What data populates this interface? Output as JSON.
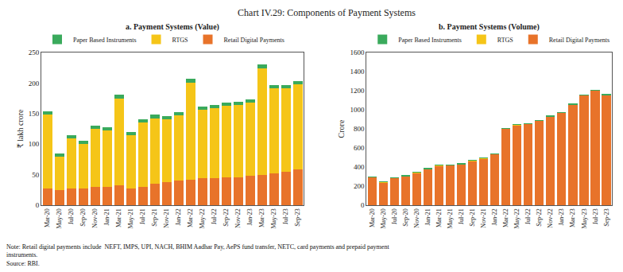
{
  "title": "Chart IV.29: Components of Payment Systems",
  "annotations": [
    "Note: Retail digital payments include  NEFT, IMPS, UPI, NACH, BHIM Aadhar Pay, AePS fund transfer, NETC, card payments and prepaid payment",
    "instruments.",
    "Source: RBI."
  ],
  "chart_data": [
    {
      "type": "bar",
      "title": "a. Payment Systems (Value)",
      "ylabel": "₹ lakh crore",
      "categories": [
        "Mar-20",
        "May-20",
        "Jul-20",
        "Sep-20",
        "Nov-20",
        "Jan-21",
        "Mar-21",
        "May-21",
        "Jul-21",
        "Sep-21",
        "Nov-21",
        "Jan-22",
        "Mar-22",
        "May-22",
        "Jul-22",
        "Sep-22",
        "Nov-22",
        "Jan-23",
        "Mar-23",
        "May-23",
        "Jul-23",
        "Sep-23"
      ],
      "series": [
        {
          "name": "Retail Digital Payments",
          "color": "#E8732A",
          "values": [
            27,
            25,
            27,
            28,
            30,
            30,
            32,
            28,
            30,
            35,
            38,
            40,
            42,
            44,
            44,
            45,
            46,
            48,
            50,
            52,
            55,
            58
          ]
        },
        {
          "name": "RTGS",
          "color": "#F5C518",
          "values": [
            122,
            55,
            83,
            72,
            95,
            93,
            142,
            87,
            106,
            107,
            103,
            107,
            158,
            112,
            115,
            118,
            118,
            120,
            174,
            140,
            137,
            140
          ]
        },
        {
          "name": "Paper Based Instruments",
          "color": "#3AAA5C",
          "values": [
            5,
            5,
            5,
            5,
            5,
            5,
            7,
            5,
            5,
            6,
            5,
            5,
            7,
            5,
            5,
            5,
            5,
            5,
            7,
            5,
            5,
            5
          ]
        }
      ],
      "ylim": [
        0,
        250
      ],
      "yticks": [
        0,
        50,
        100,
        150,
        200,
        250
      ],
      "stacked": true,
      "grid": false,
      "legend": "top"
    },
    {
      "type": "bar",
      "title": "b. Payment Systems (Volume)",
      "ylabel": "Crore",
      "categories": [
        "Mar-20",
        "May-20",
        "Jul-20",
        "Sep-20",
        "Nov-20",
        "Jan-21",
        "Mar-21",
        "May-21",
        "Jul-21",
        "Sep-21",
        "Nov-21",
        "Jan-22",
        "Mar-22",
        "May-22",
        "Jul-22",
        "Sep-22",
        "Nov-22",
        "Jan-23",
        "Mar-23",
        "May-23",
        "Jul-23",
        "Sep-23"
      ],
      "series": [
        {
          "name": "Retail Digital Payments",
          "color": "#E8732A",
          "values": [
            295,
            240,
            285,
            305,
            340,
            380,
            415,
            420,
            430,
            465,
            490,
            535,
            800,
            840,
            850,
            885,
            930,
            970,
            1055,
            1150,
            1200,
            1155
          ]
        },
        {
          "name": "RTGS",
          "color": "#F5C518",
          "values": [
            2,
            2,
            2,
            2,
            2,
            2,
            2,
            2,
            2,
            2,
            2,
            2,
            2,
            2,
            2,
            2,
            2,
            2,
            2,
            2,
            2,
            2
          ]
        },
        {
          "name": "Paper Based Instruments",
          "color": "#3AAA5C",
          "values": [
            2,
            2,
            2,
            2,
            2,
            2,
            2,
            2,
            2,
            2,
            2,
            2,
            2,
            2,
            2,
            2,
            2,
            2,
            2,
            2,
            2,
            2
          ]
        }
      ],
      "ylim": [
        0,
        1600
      ],
      "yticks": [
        0,
        200,
        400,
        600,
        800,
        1000,
        1200,
        1400,
        1600
      ],
      "stacked": true,
      "grid": false,
      "legend": "top"
    }
  ]
}
